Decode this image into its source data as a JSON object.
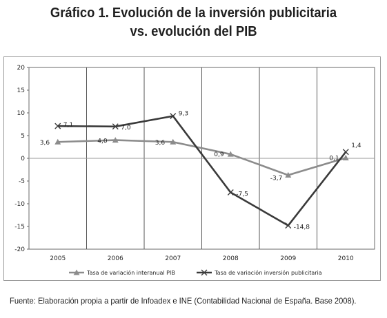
{
  "title": {
    "line1": "Gráfico 1. Evolución de la inversión publicitaria",
    "line2": "vs. evolución del PIB"
  },
  "source": "Fuente: Elaboración propia a partir de Infoadex e INE (Contabilidad Nacional de España. Base 2008).",
  "chart_data": {
    "type": "line",
    "x": [
      "2005",
      "2006",
      "2007",
      "2008",
      "2009",
      "2010"
    ],
    "ylim": [
      -20,
      20
    ],
    "yticks": [
      20,
      15,
      10,
      5,
      0,
      -5,
      -10,
      -15,
      -20
    ],
    "grid": "vertical",
    "legend_position": "bottom",
    "series": [
      {
        "name": "Tasa de variación interanual PIB",
        "values": [
          3.6,
          4.0,
          3.6,
          0.9,
          -3.7,
          0.1
        ],
        "labels": [
          "3,6",
          "4,0",
          "3,6",
          "0,9",
          "-3,7",
          "0,1"
        ],
        "color": "#8c8c8c",
        "marker": "triangle"
      },
      {
        "name": "Tasa de variación inversión publicitaria",
        "values": [
          7.1,
          7.0,
          9.3,
          -7.5,
          -14.8,
          1.4
        ],
        "labels": [
          "7,1",
          "7,0",
          "9,3",
          "-7,5",
          "-14,8",
          "1,4"
        ],
        "color": "#3a3a3a",
        "marker": "x"
      }
    ]
  }
}
